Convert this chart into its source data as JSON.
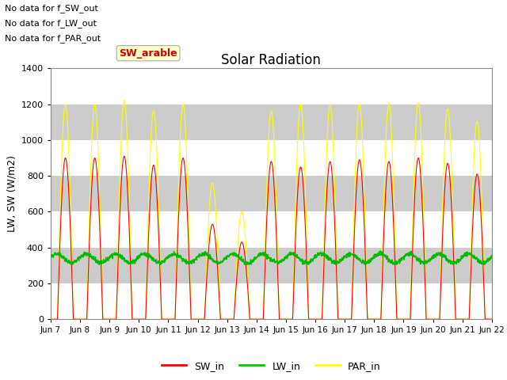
{
  "title": "Solar Radiation",
  "ylabel": "LW, SW (W/m2)",
  "ylim": [
    0,
    1400
  ],
  "yticks": [
    0,
    200,
    400,
    600,
    800,
    1000,
    1200,
    1400
  ],
  "annotations": [
    "No data for f_SW_out",
    "No data for f_LW_out",
    "No data for f_PAR_out"
  ],
  "tooltip_text": "SW_arable",
  "tooltip_color": "#cc0000",
  "tooltip_bg": "#ffffcc",
  "legend": [
    {
      "label": "SW_in",
      "color": "#ff0000"
    },
    {
      "label": "LW_in",
      "color": "#00cc00"
    },
    {
      "label": "PAR_in",
      "color": "#ffff00"
    }
  ],
  "sw_day_peaks": [
    900,
    900,
    910,
    860,
    900,
    530,
    430,
    880,
    850,
    880,
    890,
    880,
    900,
    870,
    810,
    0
  ],
  "par_day_peaks": [
    1200,
    1200,
    1220,
    1165,
    1200,
    760,
    600,
    1165,
    1200,
    1195,
    1200,
    1205,
    1205,
    1175,
    1105,
    0
  ],
  "lw_in_base": 340,
  "lw_in_variation": 25,
  "n_days": 15,
  "start_day": 7,
  "x_tick_labels": [
    "Jun 7",
    "Jun 8",
    "Jun 9",
    "Jun 10",
    "Jun 11",
    "Jun 12",
    "Jun 13",
    "Jun 14",
    "Jun 15",
    "Jun 16",
    "Jun 17",
    "Jun 18",
    "Jun 19",
    "Jun 20",
    "Jun 21",
    "Jun 22"
  ]
}
